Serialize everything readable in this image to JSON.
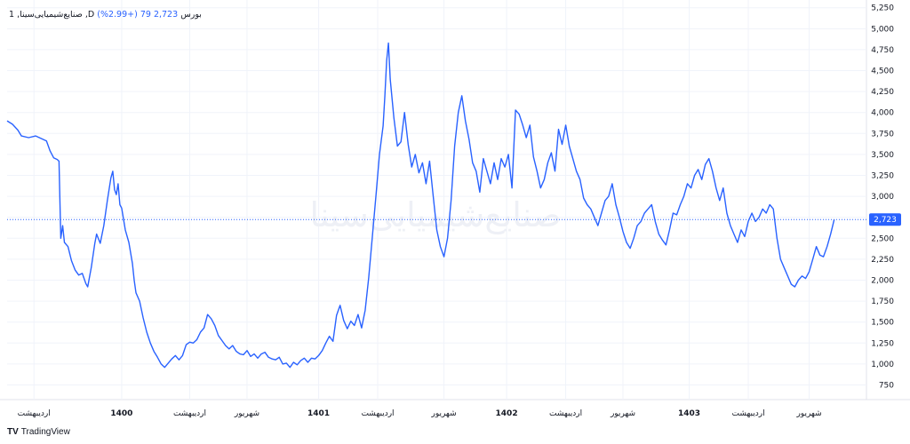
{
  "header": {
    "symbol": "1 ,صنایع‌شیمیایی‌سینا ,D",
    "exchange": "بورس",
    "price": "2,723",
    "change": "79 (+2.99%)"
  },
  "watermark": "صنایع‌شیمیایی‌سینا",
  "branding": "TradingView",
  "last_price_label": "2,723",
  "colors": {
    "line": "#2962ff",
    "grid": "#f0f3fa",
    "badge": "#2962ff",
    "text": "#131722"
  },
  "chart_data": {
    "type": "line",
    "series": [
      {
        "values": [
          [
            0,
            3900
          ],
          [
            3,
            3860
          ],
          [
            6,
            3790
          ],
          [
            8,
            3720
          ],
          [
            12,
            3700
          ],
          [
            16,
            3720
          ],
          [
            20,
            3680
          ],
          [
            22,
            3660
          ],
          [
            24,
            3540
          ],
          [
            26,
            3460
          ],
          [
            28,
            3440
          ],
          [
            29,
            3420
          ],
          [
            30,
            2500
          ],
          [
            31,
            2650
          ],
          [
            32,
            2450
          ],
          [
            34,
            2400
          ],
          [
            36,
            2230
          ],
          [
            38,
            2120
          ],
          [
            40,
            2060
          ],
          [
            42,
            2080
          ],
          [
            44,
            1960
          ],
          [
            45,
            1920
          ],
          [
            47,
            2150
          ],
          [
            49,
            2440
          ],
          [
            50,
            2550
          ],
          [
            52,
            2440
          ],
          [
            54,
            2650
          ],
          [
            56,
            2950
          ],
          [
            58,
            3220
          ],
          [
            59,
            3300
          ],
          [
            60,
            3080
          ],
          [
            61,
            3020
          ],
          [
            62,
            3150
          ],
          [
            63,
            2900
          ],
          [
            64,
            2860
          ],
          [
            66,
            2600
          ],
          [
            68,
            2450
          ],
          [
            70,
            2200
          ],
          [
            71,
            2000
          ],
          [
            72,
            1850
          ],
          [
            74,
            1750
          ],
          [
            76,
            1550
          ],
          [
            78,
            1380
          ],
          [
            80,
            1250
          ],
          [
            82,
            1150
          ],
          [
            84,
            1080
          ],
          [
            86,
            1000
          ],
          [
            88,
            960
          ],
          [
            90,
            1010
          ],
          [
            92,
            1060
          ],
          [
            94,
            1100
          ],
          [
            96,
            1050
          ],
          [
            98,
            1100
          ],
          [
            100,
            1230
          ],
          [
            102,
            1260
          ],
          [
            104,
            1250
          ],
          [
            106,
            1290
          ],
          [
            108,
            1380
          ],
          [
            110,
            1430
          ],
          [
            112,
            1590
          ],
          [
            114,
            1540
          ],
          [
            116,
            1460
          ],
          [
            118,
            1340
          ],
          [
            120,
            1280
          ],
          [
            122,
            1220
          ],
          [
            124,
            1180
          ],
          [
            126,
            1220
          ],
          [
            128,
            1150
          ],
          [
            130,
            1120
          ],
          [
            132,
            1110
          ],
          [
            134,
            1160
          ],
          [
            136,
            1090
          ],
          [
            138,
            1120
          ],
          [
            140,
            1070
          ],
          [
            142,
            1120
          ],
          [
            144,
            1140
          ],
          [
            146,
            1080
          ],
          [
            148,
            1060
          ],
          [
            150,
            1050
          ],
          [
            152,
            1080
          ],
          [
            154,
            1000
          ],
          [
            156,
            1010
          ],
          [
            158,
            960
          ],
          [
            160,
            1020
          ],
          [
            162,
            990
          ],
          [
            164,
            1040
          ],
          [
            166,
            1070
          ],
          [
            168,
            1020
          ],
          [
            170,
            1070
          ],
          [
            172,
            1060
          ],
          [
            174,
            1100
          ],
          [
            176,
            1160
          ],
          [
            178,
            1250
          ],
          [
            180,
            1330
          ],
          [
            182,
            1270
          ],
          [
            184,
            1580
          ],
          [
            186,
            1700
          ],
          [
            188,
            1520
          ],
          [
            190,
            1420
          ],
          [
            192,
            1510
          ],
          [
            194,
            1460
          ],
          [
            196,
            1590
          ],
          [
            198,
            1430
          ],
          [
            200,
            1640
          ],
          [
            202,
            2030
          ],
          [
            204,
            2520
          ],
          [
            206,
            3000
          ],
          [
            208,
            3500
          ],
          [
            210,
            3840
          ],
          [
            211,
            4200
          ],
          [
            212,
            4620
          ],
          [
            213,
            4830
          ],
          [
            214,
            4400
          ],
          [
            216,
            3940
          ],
          [
            218,
            3600
          ],
          [
            220,
            3650
          ],
          [
            222,
            4000
          ],
          [
            224,
            3620
          ],
          [
            226,
            3350
          ],
          [
            228,
            3500
          ],
          [
            230,
            3280
          ],
          [
            232,
            3400
          ],
          [
            234,
            3150
          ],
          [
            236,
            3420
          ],
          [
            238,
            3000
          ],
          [
            240,
            2600
          ],
          [
            242,
            2400
          ],
          [
            244,
            2280
          ],
          [
            246,
            2500
          ],
          [
            248,
            2950
          ],
          [
            250,
            3600
          ],
          [
            252,
            4000
          ],
          [
            254,
            4200
          ],
          [
            256,
            3900
          ],
          [
            258,
            3680
          ],
          [
            260,
            3400
          ],
          [
            262,
            3300
          ],
          [
            264,
            3050
          ],
          [
            266,
            3450
          ],
          [
            268,
            3300
          ],
          [
            270,
            3150
          ],
          [
            272,
            3400
          ],
          [
            274,
            3200
          ],
          [
            276,
            3450
          ],
          [
            278,
            3350
          ],
          [
            280,
            3500
          ],
          [
            282,
            3100
          ],
          [
            284,
            4030
          ],
          [
            286,
            3980
          ],
          [
            288,
            3850
          ],
          [
            290,
            3700
          ],
          [
            292,
            3850
          ],
          [
            294,
            3470
          ],
          [
            296,
            3300
          ],
          [
            298,
            3100
          ],
          [
            300,
            3200
          ],
          [
            302,
            3400
          ],
          [
            304,
            3520
          ],
          [
            306,
            3300
          ],
          [
            308,
            3800
          ],
          [
            310,
            3620
          ],
          [
            312,
            3850
          ],
          [
            314,
            3600
          ],
          [
            316,
            3450
          ],
          [
            318,
            3300
          ],
          [
            320,
            3200
          ],
          [
            322,
            2980
          ],
          [
            324,
            2900
          ],
          [
            326,
            2850
          ],
          [
            328,
            2750
          ],
          [
            330,
            2650
          ],
          [
            332,
            2800
          ],
          [
            334,
            2950
          ],
          [
            336,
            3000
          ],
          [
            338,
            3150
          ],
          [
            340,
            2900
          ],
          [
            342,
            2750
          ],
          [
            344,
            2580
          ],
          [
            346,
            2450
          ],
          [
            348,
            2380
          ],
          [
            350,
            2500
          ],
          [
            352,
            2650
          ],
          [
            354,
            2700
          ],
          [
            356,
            2800
          ],
          [
            358,
            2850
          ],
          [
            360,
            2900
          ],
          [
            362,
            2700
          ],
          [
            364,
            2550
          ],
          [
            366,
            2480
          ],
          [
            368,
            2420
          ],
          [
            370,
            2600
          ],
          [
            372,
            2800
          ],
          [
            374,
            2780
          ],
          [
            376,
            2900
          ],
          [
            378,
            3000
          ],
          [
            380,
            3150
          ],
          [
            382,
            3100
          ],
          [
            384,
            3250
          ],
          [
            386,
            3320
          ],
          [
            388,
            3200
          ],
          [
            390,
            3380
          ],
          [
            392,
            3450
          ],
          [
            394,
            3300
          ],
          [
            396,
            3100
          ],
          [
            398,
            2950
          ],
          [
            400,
            3100
          ],
          [
            402,
            2800
          ],
          [
            404,
            2650
          ],
          [
            406,
            2550
          ],
          [
            408,
            2450
          ],
          [
            410,
            2600
          ],
          [
            412,
            2520
          ],
          [
            414,
            2700
          ],
          [
            416,
            2800
          ],
          [
            418,
            2700
          ],
          [
            420,
            2750
          ],
          [
            422,
            2850
          ],
          [
            424,
            2800
          ],
          [
            426,
            2900
          ],
          [
            428,
            2850
          ],
          [
            430,
            2500
          ],
          [
            432,
            2250
          ],
          [
            434,
            2150
          ],
          [
            436,
            2050
          ],
          [
            438,
            1950
          ],
          [
            440,
            1920
          ],
          [
            442,
            2000
          ],
          [
            444,
            2050
          ],
          [
            446,
            2020
          ],
          [
            448,
            2100
          ],
          [
            450,
            2250
          ],
          [
            452,
            2400
          ],
          [
            454,
            2300
          ],
          [
            456,
            2280
          ],
          [
            458,
            2400
          ],
          [
            460,
            2550
          ],
          [
            462,
            2723
          ]
        ]
      }
    ],
    "ylim": [
      575,
      5300
    ],
    "yticks": [
      750,
      1000,
      1250,
      1500,
      1750,
      2000,
      2250,
      2500,
      2750,
      3000,
      3250,
      3500,
      3750,
      4000,
      4250,
      4500,
      4750,
      5000,
      5250
    ],
    "ytick_labels": [
      "750",
      "1,000",
      "1,250",
      "1,500",
      "1,750",
      "2,000",
      "2,250",
      "2,500",
      "2,750",
      "3,000",
      "3,250",
      "3,500",
      "3,750",
      "4,000",
      "4,250",
      "4,500",
      "4,750",
      "5,000",
      "5,250"
    ],
    "xticks": [
      {
        "x": 15,
        "label": "اردیبهشت"
      },
      {
        "x": 64,
        "label": "1400"
      },
      {
        "x": 102,
        "label": "اردیبهشت"
      },
      {
        "x": 134,
        "label": "شهریور"
      },
      {
        "x": 174,
        "label": "1401"
      },
      {
        "x": 207,
        "label": "اردیبهشت"
      },
      {
        "x": 244,
        "label": "شهریور"
      },
      {
        "x": 279,
        "label": "1402"
      },
      {
        "x": 312,
        "label": "اردیبهشت"
      },
      {
        "x": 344,
        "label": "شهریور"
      },
      {
        "x": 381,
        "label": "1403"
      },
      {
        "x": 414,
        "label": "اردیبهشت"
      },
      {
        "x": 448,
        "label": "شهریور"
      }
    ],
    "xlim": [
      0,
      480
    ],
    "last_value": 2723,
    "grid": true
  }
}
